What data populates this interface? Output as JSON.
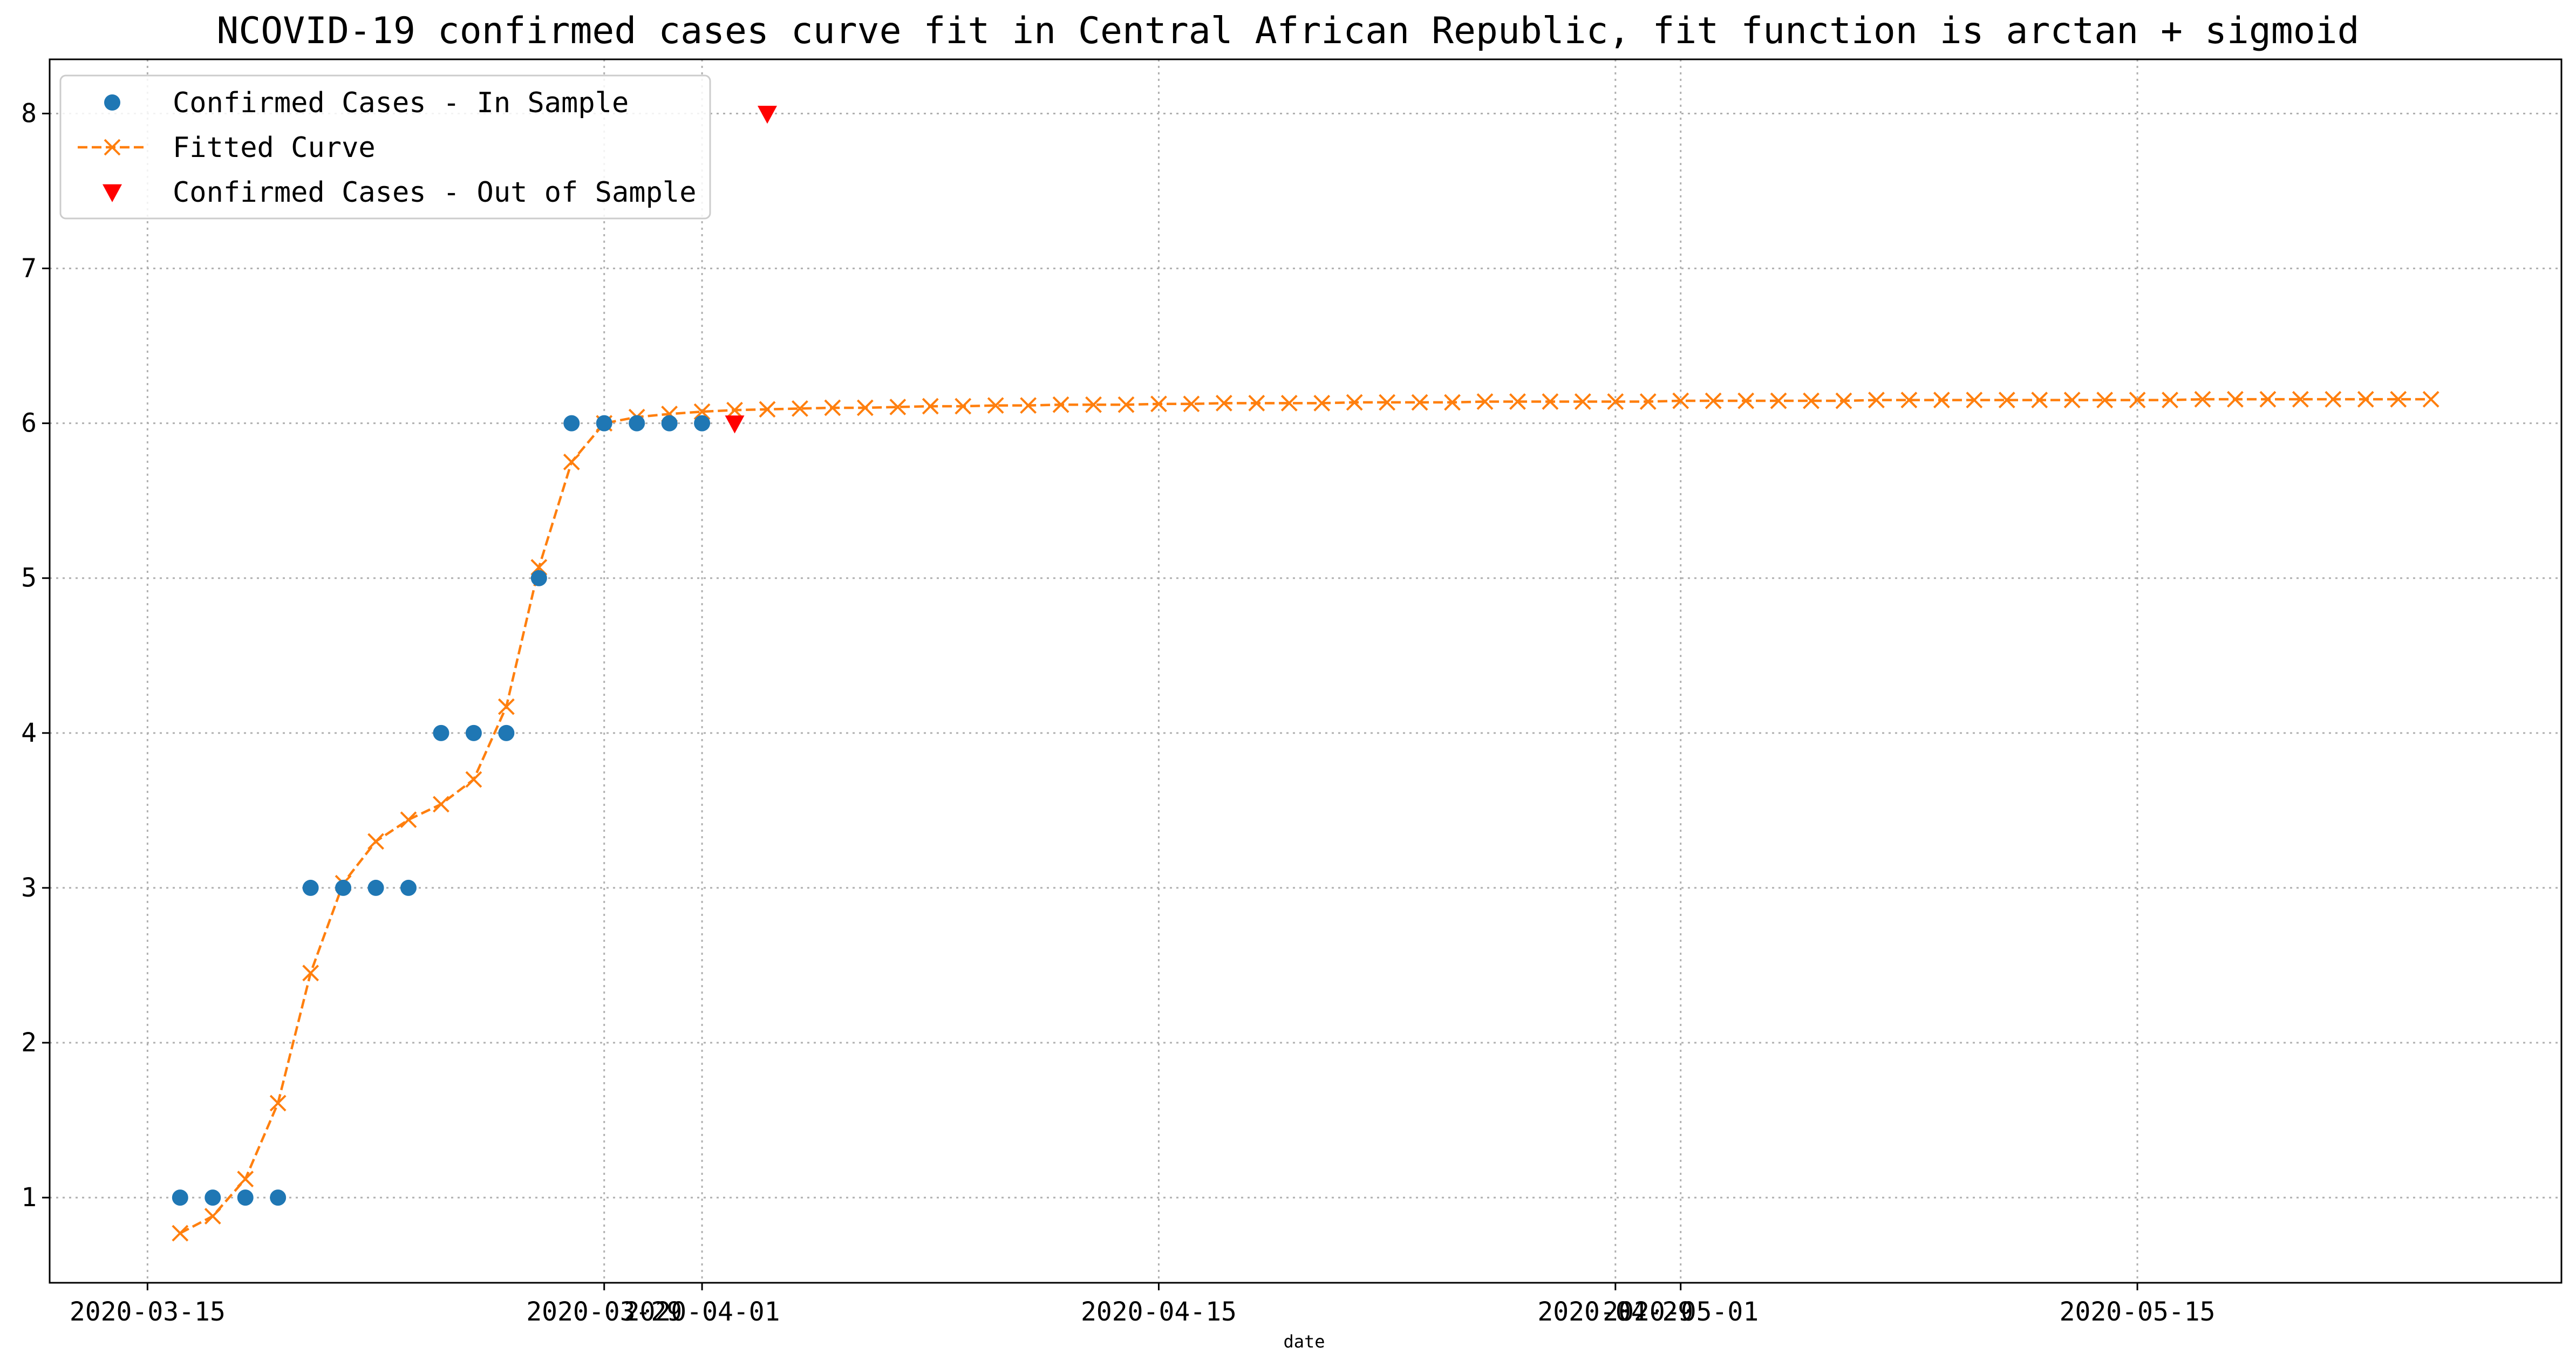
{
  "chart_data": {
    "type": "line",
    "title": "NCOVID-19 confirmed cases curve fit in Central African Republic, fit function is arctan + sigmoid",
    "xlabel": "date",
    "ylabel": "",
    "x_ticks": [
      {
        "date": "2020-03-15",
        "label": "2020-03-15"
      },
      {
        "date": "2020-03-29",
        "label": "2020-03-29"
      },
      {
        "date": "2020-04-01",
        "label": "2020-04-01"
      },
      {
        "date": "2020-04-15",
        "label": "2020-04-15"
      },
      {
        "date": "2020-04-29",
        "label": "2020-04-29"
      },
      {
        "date": "2020-05-01",
        "label": "2020-05-01"
      },
      {
        "date": "2020-05-15",
        "label": "2020-05-15"
      }
    ],
    "y_ticks": [
      1,
      2,
      3,
      4,
      5,
      6,
      7,
      8
    ],
    "xlim": [
      "2020-03-12",
      "2020-05-28"
    ],
    "ylim": [
      0.45,
      8.35
    ],
    "grid": true,
    "legend_position": "top-left",
    "series": [
      {
        "name": "Confirmed Cases - In Sample",
        "style": "points",
        "marker": "circle",
        "color": "#1f77b4",
        "points": [
          {
            "x": "2020-03-16",
            "y": 1
          },
          {
            "x": "2020-03-17",
            "y": 1
          },
          {
            "x": "2020-03-18",
            "y": 1
          },
          {
            "x": "2020-03-19",
            "y": 1
          },
          {
            "x": "2020-03-20",
            "y": 3
          },
          {
            "x": "2020-03-21",
            "y": 3
          },
          {
            "x": "2020-03-22",
            "y": 3
          },
          {
            "x": "2020-03-23",
            "y": 3
          },
          {
            "x": "2020-03-24",
            "y": 4
          },
          {
            "x": "2020-03-25",
            "y": 4
          },
          {
            "x": "2020-03-26",
            "y": 4
          },
          {
            "x": "2020-03-27",
            "y": 5
          },
          {
            "x": "2020-03-28",
            "y": 6
          },
          {
            "x": "2020-03-29",
            "y": 6
          },
          {
            "x": "2020-03-30",
            "y": 6
          },
          {
            "x": "2020-03-31",
            "y": 6
          },
          {
            "x": "2020-04-01",
            "y": 6
          }
        ]
      },
      {
        "name": "Fitted Curve",
        "style": "dashed-line-x",
        "marker": "x",
        "color": "#ff7f0e",
        "x_start": "2020-03-16",
        "y": [
          0.77,
          0.88,
          1.12,
          1.61,
          2.45,
          3.03,
          3.3,
          3.44,
          3.54,
          3.7,
          4.17,
          5.07,
          5.75,
          6.0,
          6.04,
          6.06,
          6.075,
          6.085,
          6.09,
          6.095,
          6.1,
          6.1,
          6.105,
          6.11,
          6.11,
          6.115,
          6.115,
          6.12,
          6.12,
          6.12,
          6.125,
          6.125,
          6.13,
          6.13,
          6.13,
          6.13,
          6.135,
          6.135,
          6.135,
          6.135,
          6.14,
          6.14,
          6.14,
          6.14,
          6.14,
          6.14,
          6.145,
          6.145,
          6.145,
          6.145,
          6.145,
          6.145,
          6.15,
          6.15,
          6.15,
          6.15,
          6.15,
          6.15,
          6.15,
          6.15,
          6.15,
          6.15,
          6.155,
          6.155,
          6.155,
          6.155,
          6.155,
          6.155,
          6.155,
          6.155
        ]
      },
      {
        "name": "Confirmed Cases - Out of Sample",
        "style": "points",
        "marker": "triangle-down",
        "color": "#ff0000",
        "points": [
          {
            "x": "2020-04-02",
            "y": 6
          },
          {
            "x": "2020-04-03",
            "y": 8
          }
        ]
      }
    ]
  }
}
